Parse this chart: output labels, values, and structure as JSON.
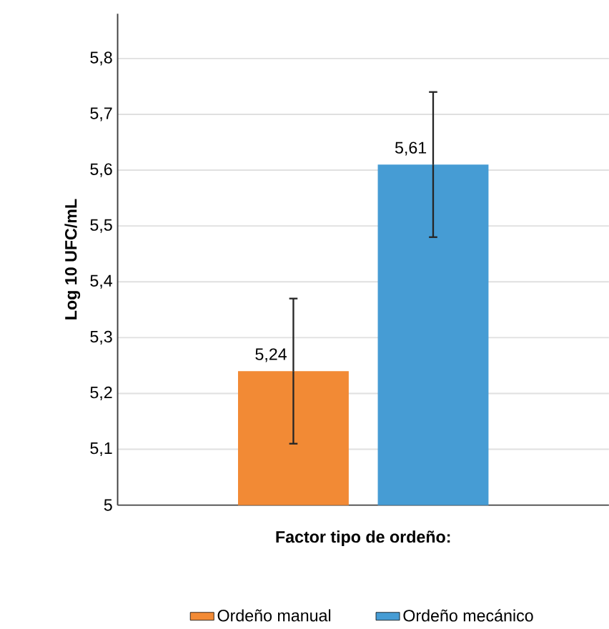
{
  "chart_data": {
    "type": "bar",
    "xlabel": "Factor tipo de ordeño:",
    "ylabel": "Log 10 UFC/mL",
    "categories": [
      null
    ],
    "series": [
      {
        "name": "Ordeño manual",
        "color": "#f28a35",
        "values": [
          5.24
        ],
        "errors": [
          0.13
        ],
        "value_labels": [
          "5,24"
        ]
      },
      {
        "name": "Ordeño mecánico",
        "color": "#469cd4",
        "values": [
          5.61
        ],
        "errors": [
          0.13
        ],
        "value_labels": [
          "5,61"
        ]
      }
    ],
    "ylim": [
      5,
      5.88
    ],
    "yticks": [
      {
        "value": 5,
        "label": "5"
      },
      {
        "value": 5.1,
        "label": "5,1"
      },
      {
        "value": 5.2,
        "label": "5,2"
      },
      {
        "value": 5.3,
        "label": "5,3"
      },
      {
        "value": 5.4,
        "label": "5,4"
      },
      {
        "value": 5.5,
        "label": "5,5"
      },
      {
        "value": 5.6,
        "label": "5,6"
      },
      {
        "value": 5.7,
        "label": "5,7"
      },
      {
        "value": 5.8,
        "label": "5,8"
      }
    ],
    "grid": "y",
    "legend": "bottom"
  }
}
